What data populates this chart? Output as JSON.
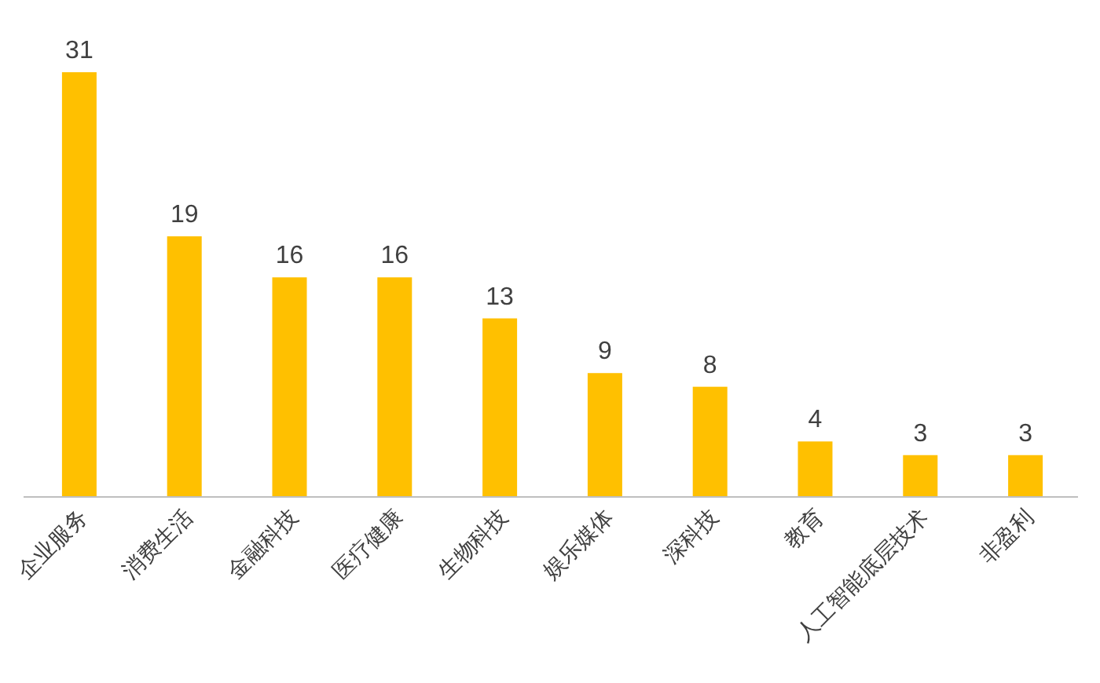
{
  "chart_data": {
    "type": "bar",
    "categories": [
      "企业服务",
      "消费生活",
      "金融科技",
      "医疗健康",
      "生物科技",
      "娱乐媒体",
      "深科技",
      "教育",
      "人工智能底层技术",
      "非盈利"
    ],
    "values": [
      31,
      19,
      16,
      16,
      13,
      9,
      8,
      4,
      3,
      3
    ],
    "color": "#ffc000",
    "data_labels": true
  }
}
